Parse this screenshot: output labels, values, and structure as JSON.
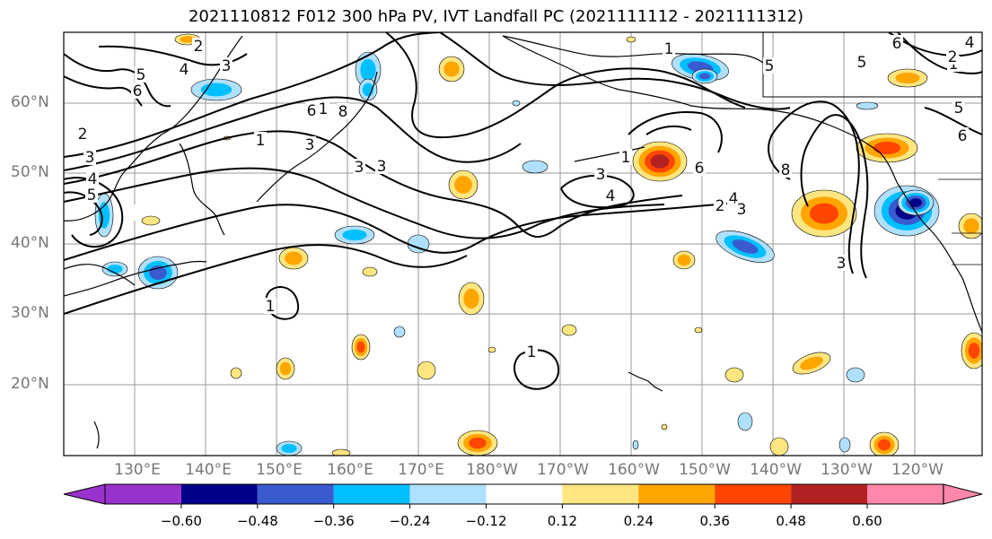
{
  "title": "2021110812 F012 300 hPa PV, IVT Landfall PC (2021111112 - 2021111312)",
  "map": {
    "lat_labels": [
      "60°N",
      "50°N",
      "40°N",
      "30°N",
      "20°N"
    ],
    "lon_labels": [
      "130°E",
      "140°E",
      "150°E",
      "160°E",
      "170°E",
      "180°W",
      "170°W",
      "160°W",
      "150°W",
      "140°W",
      "130°W",
      "120°W"
    ],
    "contour_labels": [
      "1",
      "2",
      "3",
      "4",
      "5",
      "6",
      "8"
    ],
    "contour_color": "#000000",
    "gridline_color": "#999999"
  },
  "colorbar": {
    "tick_labels": [
      "−0.60",
      "−0.48",
      "−0.36",
      "−0.24",
      "−0.12",
      "0.12",
      "0.24",
      "0.36",
      "0.48",
      "0.60"
    ],
    "colors": [
      "#9932cc",
      "#00008b",
      "#3a5bd0",
      "#00bfff",
      "#b0e0ff",
      "#ffffff",
      "#ffe680",
      "#ffa500",
      "#ff4500",
      "#b22222",
      "#ff88aa"
    ]
  }
}
